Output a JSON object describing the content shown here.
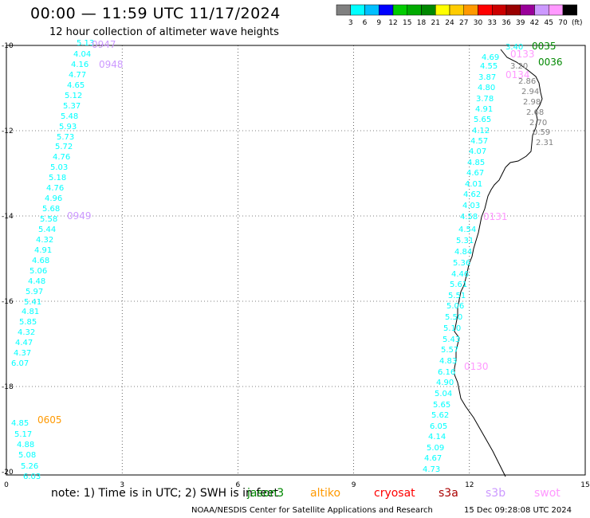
{
  "title": "00:00 — 11:59 UTC 11/17/2024",
  "subtitle": "12 hour collection of altimeter wave heights",
  "colorbar": {
    "colors": [
      "#808080",
      "#00ffff",
      "#00bfff",
      "#0000ff",
      "#00cc00",
      "#00aa00",
      "#008800",
      "#ffff00",
      "#ffcc00",
      "#ff9900",
      "#ff0000",
      "#cc0000",
      "#990000",
      "#990099",
      "#cc99ff",
      "#ff99ff",
      "#000000"
    ],
    "labels": [
      "3",
      "6",
      "9",
      "12",
      "15",
      "18",
      "21",
      "24",
      "27",
      "30",
      "33",
      "36",
      "39",
      "42",
      "45",
      "70",
      "(ft)"
    ]
  },
  "axes": {
    "x_ticks": [
      "0",
      "3",
      "6",
      "9",
      "12",
      "15"
    ],
    "y_ticks": [
      "-10",
      "-12",
      "-14",
      "-16",
      "-18",
      "-20"
    ]
  },
  "legend": {
    "note": "note: 1) Time is in UTC; 2) SWH is in feet",
    "missions": [
      {
        "name": "jason3",
        "color": "#008800"
      },
      {
        "name": "altiko",
        "color": "#ff9900"
      },
      {
        "name": "cryosat",
        "color": "#ff0000"
      },
      {
        "name": "s3a",
        "color": "#aa0000"
      },
      {
        "name": "s3b",
        "color": "#cc99ff"
      },
      {
        "name": "swot",
        "color": "#ff99ff"
      }
    ]
  },
  "footer": {
    "credit": "NOAA/NESDIS Center for Satellite Applications and Research",
    "timestamp": "15 Dec 09:28:08 UTC 2024"
  },
  "time_labels": [
    {
      "text": "0947",
      "color": "#cc99ff"
    },
    {
      "text": "0948",
      "color": "#cc99ff"
    },
    {
      "text": "0949",
      "color": "#cc99ff"
    },
    {
      "text": "0605",
      "color": "#ff9900"
    },
    {
      "text": "0035",
      "color": "#008800"
    },
    {
      "text": "0036",
      "color": "#008800"
    },
    {
      "text": "0133",
      "color": "#ff99ff"
    },
    {
      "text": "0134",
      "color": "#ff99ff"
    },
    {
      "text": "0131",
      "color": "#ff99ff"
    },
    {
      "text": "0130",
      "color": "#ff99ff"
    }
  ],
  "tracks": [
    {
      "color": "#00ffff",
      "values": [
        "5.13",
        "4.04",
        "4.16",
        "4.77",
        "4.65",
        "5.12",
        "5.37",
        "5.48",
        "5.93",
        "5.73",
        "5.72",
        "4.76",
        "5.03",
        "5.18",
        "4.76",
        "4.96",
        "5.68",
        "5.58",
        "5.44",
        "4.32",
        "4.91",
        "4.68",
        "5.06",
        "4.48",
        "5.97",
        "5.41",
        "4.81",
        "5.85",
        "4.32",
        "4.47",
        "4.37",
        "6.07"
      ]
    },
    {
      "color": "#00ffff",
      "values": [
        "4.85",
        "5.17",
        "4.88",
        "5.08",
        "5.26",
        "6.03"
      ]
    },
    {
      "color": "#00ffff",
      "values": [
        "3.40",
        "4.69",
        "4.55",
        "3.87",
        "4.80",
        "3.78",
        "4.91",
        "5.65",
        "4.12",
        "4.57",
        "4.07",
        "4.85",
        "4.67",
        "4.01",
        "4.62",
        "4.03",
        "4.58",
        "4.54",
        "5.31",
        "4.84",
        "5.36",
        "4.46",
        "5.61",
        "5.51",
        "5.06",
        "5.50",
        "5.10",
        "5.43",
        "5.57",
        "4.83",
        "6.16",
        "4.90",
        "5.04",
        "5.65",
        "5.62",
        "6.05",
        "4.14",
        "5.09",
        "4.67",
        "4.73"
      ]
    },
    {
      "color": "#808080",
      "values": [
        "3.20",
        "2.86",
        "2.94",
        "2.98",
        "2.68",
        "2.70",
        "0.59",
        "2.31"
      ]
    }
  ]
}
